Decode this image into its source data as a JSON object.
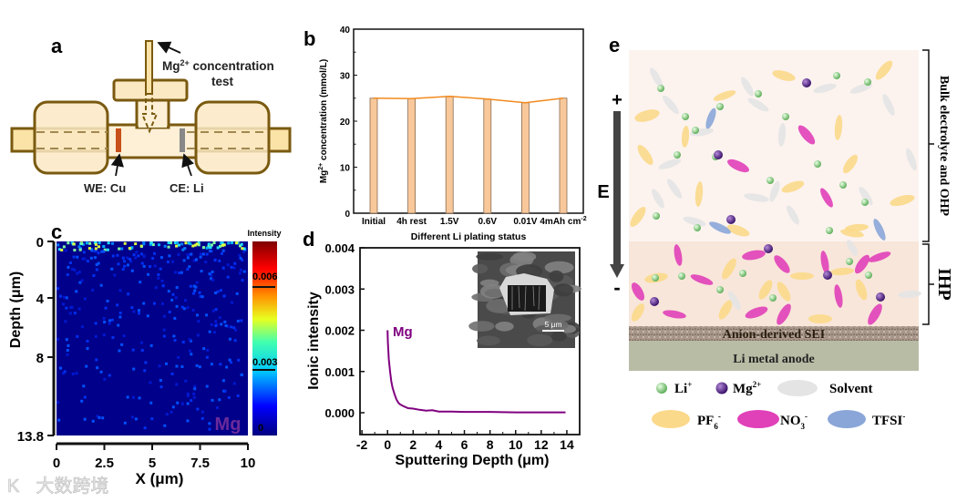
{
  "panel_labels": {
    "a": "a",
    "b": "b",
    "c": "c",
    "d": "d",
    "e": "e"
  },
  "panel_a": {
    "probe_label_main": "Mg",
    "probe_label_sup": "2+",
    "probe_label_rest": " concentration",
    "probe_label_line2": "test",
    "we_label": "WE: Cu",
    "ce_label": "CE: Li",
    "colors": {
      "frame": "#7a5a10",
      "fill": "#fbe9c4",
      "we": "#c8501a",
      "ce": "#888888"
    }
  },
  "chart_data": [
    {
      "id": "b",
      "type": "bar",
      "title": "",
      "categories": [
        "Initial",
        "4h rest",
        "1.5V",
        "0.6V",
        "0.01V",
        "4mAh cm"
      ],
      "category_suffix_sup": "-2",
      "values": [
        25.0,
        24.9,
        25.4,
        24.8,
        24.0,
        25.0
      ],
      "xlabel": "Different Li plating status",
      "ylabel_main": "Mg",
      "ylabel_sup": "2+",
      "ylabel_rest": " concentration (mmol/L)",
      "ylim": [
        0,
        40
      ],
      "yticks": [
        "0",
        "10",
        "20",
        "30",
        "40"
      ],
      "overlay_line": true,
      "colors": {
        "bar": "#f9c89a",
        "line": "#f28a1e"
      }
    },
    {
      "id": "c",
      "type": "heatmap",
      "xlabel": "X (μm)",
      "ylabel": "Depth (μm)",
      "xticks": [
        "0",
        "2.5",
        "5",
        "7.5",
        "10"
      ],
      "yticks": [
        "0",
        "4",
        "8",
        "13.8"
      ],
      "xlim": [
        0,
        10
      ],
      "ylim": [
        0,
        13.8
      ],
      "element": "Mg",
      "colorbar_title": "Intensity",
      "colorbar_ticks": [
        "0.006",
        "0.003",
        "0"
      ],
      "colorbar_range": [
        0,
        0.008
      ]
    },
    {
      "id": "d",
      "type": "line",
      "xlabel": "Sputtering Depth (μm)",
      "ylabel": "Ionic intensity",
      "xticks": [
        "-2",
        "0",
        "2",
        "4",
        "6",
        "8",
        "10",
        "12",
        "14"
      ],
      "yticks": [
        "0.000",
        "0.001",
        "0.002",
        "0.003",
        "0.004"
      ],
      "xlim": [
        -2.15,
        15
      ],
      "ylim": [
        -0.00053,
        0.004
      ],
      "series": [
        {
          "name": "Mg",
          "color": "#800080",
          "x": [
            0,
            0.03,
            0.1,
            0.2,
            0.3,
            0.4,
            0.55,
            0.7,
            0.85,
            1.0,
            1.3,
            1.6,
            2.0,
            2.5,
            3.0,
            3.5,
            4.0,
            5.0,
            6.0,
            8.0,
            10.0,
            12.0,
            13.9
          ],
          "y": [
            0.002,
            0.0017,
            0.0013,
            0.001,
            0.00075,
            0.0006,
            0.00045,
            0.00032,
            0.00024,
            0.0002,
            0.00015,
            0.00011,
            0.0001,
            7e-05,
            5e-05,
            6e-05,
            3e-05,
            3e-05,
            2e-05,
            2e-05,
            1e-05,
            1e-05,
            1e-05
          ]
        }
      ],
      "inset_scale_bar": "5 μm"
    }
  ],
  "panel_e": {
    "field_plus": "+",
    "field_minus": "-",
    "field_label": "E",
    "region_bulk": "Bulk electrolyte and OHP",
    "region_ihp": "IHP",
    "sei_label": "Anion-derived SEI",
    "anode_label": "Li metal anode",
    "legend": {
      "li": {
        "main": "Li",
        "sup": "+"
      },
      "mg": {
        "main": "Mg",
        "sup": "2+"
      },
      "solvent": {
        "main": "Solvent"
      },
      "pf6": {
        "main": "PF",
        "sub": "6",
        "sup": "-"
      },
      "no3": {
        "main": "NO",
        "sub": "3",
        "sup": "-"
      },
      "tfsi": {
        "main": "TFSI",
        "sup": "-"
      }
    },
    "colors": {
      "li": "#8fd08a",
      "mg": "#5a2a8a",
      "solvent": "#e4e4e4",
      "pf6": "#fbd98a",
      "no3": "#e040b8",
      "tfsi": "#8aa6d8",
      "bulk_bg": "#fcf3ef",
      "ihp_bg": "#f8e6da",
      "anode": "#b9bca5"
    }
  },
  "watermark": "大数跨境"
}
